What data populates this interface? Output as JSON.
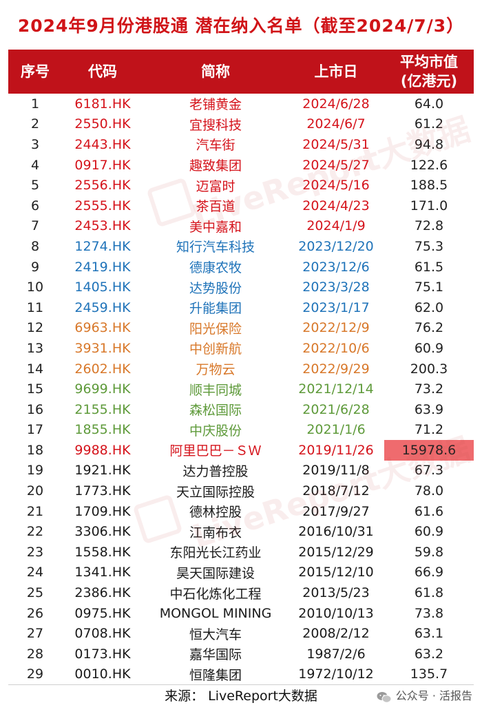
{
  "title": "2024年9月份港股通 潜在纳入名单（截至2024/7/3）",
  "header": {
    "col1": "序号",
    "col2": "代码",
    "col3": "简称",
    "col4": "上市日",
    "col5a": "平均市值",
    "col5b": "(亿港元)"
  },
  "rows": [
    {
      "no": "1",
      "code": "6181.HK",
      "name": "老铺黄金",
      "date": "2024/6/28",
      "cap": "64.0",
      "color": "red"
    },
    {
      "no": "2",
      "code": "2550.HK",
      "name": "宜搜科技",
      "date": "2024/6/7",
      "cap": "61.2",
      "color": "red"
    },
    {
      "no": "3",
      "code": "2443.HK",
      "name": "汽车街",
      "date": "2024/5/31",
      "cap": "94.8",
      "color": "red"
    },
    {
      "no": "4",
      "code": "0917.HK",
      "name": "趣致集团",
      "date": "2024/5/27",
      "cap": "122.6",
      "color": "red"
    },
    {
      "no": "5",
      "code": "2556.HK",
      "name": "迈富时",
      "date": "2024/5/16",
      "cap": "188.5",
      "color": "red"
    },
    {
      "no": "6",
      "code": "2555.HK",
      "name": "茶百道",
      "date": "2024/4/23",
      "cap": "171.0",
      "color": "red"
    },
    {
      "no": "7",
      "code": "2453.HK",
      "name": "美中嘉和",
      "date": "2024/1/9",
      "cap": "72.8",
      "color": "red"
    },
    {
      "no": "8",
      "code": "1274.HK",
      "name": "知行汽车科技",
      "date": "2023/12/20",
      "cap": "75.3",
      "color": "blue"
    },
    {
      "no": "9",
      "code": "2419.HK",
      "name": "德康农牧",
      "date": "2023/12/6",
      "cap": "61.5",
      "color": "blue"
    },
    {
      "no": "10",
      "code": "1405.HK",
      "name": "达势股份",
      "date": "2023/3/28",
      "cap": "75.1",
      "color": "blue"
    },
    {
      "no": "11",
      "code": "2459.HK",
      "name": "升能集团",
      "date": "2023/1/17",
      "cap": "62.0",
      "color": "blue"
    },
    {
      "no": "12",
      "code": "6963.HK",
      "name": "阳光保险",
      "date": "2022/12/9",
      "cap": "76.2",
      "color": "orange"
    },
    {
      "no": "13",
      "code": "3931.HK",
      "name": "中创新航",
      "date": "2022/10/6",
      "cap": "60.9",
      "color": "orange"
    },
    {
      "no": "14",
      "code": "2602.HK",
      "name": "万物云",
      "date": "2022/9/29",
      "cap": "200.3",
      "color": "orange"
    },
    {
      "no": "15",
      "code": "9699.HK",
      "name": "顺丰同城",
      "date": "2021/12/14",
      "cap": "73.2",
      "color": "green"
    },
    {
      "no": "16",
      "code": "2155.HK",
      "name": "森松国际",
      "date": "2021/6/28",
      "cap": "63.9",
      "color": "green"
    },
    {
      "no": "17",
      "code": "1855.HK",
      "name": "中庆股份",
      "date": "2021/1/6",
      "cap": "71.2",
      "color": "green"
    },
    {
      "no": "18",
      "code": "9988.HK",
      "name": "阿里巴巴－ＳＷ",
      "date": "2019/11/26",
      "cap": "15978.6",
      "color": "red",
      "highlight": true
    },
    {
      "no": "19",
      "code": "1921.HK",
      "name": "达力普控股",
      "date": "2019/11/8",
      "cap": "67.3",
      "color": "black"
    },
    {
      "no": "20",
      "code": "1773.HK",
      "name": "天立国际控股",
      "date": "2018/7/12",
      "cap": "78.0",
      "color": "black"
    },
    {
      "no": "21",
      "code": "1709.HK",
      "name": "德林控股",
      "date": "2017/9/27",
      "cap": "61.6",
      "color": "black"
    },
    {
      "no": "22",
      "code": "3306.HK",
      "name": "江南布衣",
      "date": "2016/10/31",
      "cap": "60.9",
      "color": "black"
    },
    {
      "no": "23",
      "code": "1558.HK",
      "name": "东阳光长江药业",
      "date": "2015/12/29",
      "cap": "59.8",
      "color": "black"
    },
    {
      "no": "24",
      "code": "1341.HK",
      "name": "昊天国际建设",
      "date": "2015/12/10",
      "cap": "66.9",
      "color": "black"
    },
    {
      "no": "25",
      "code": "2386.HK",
      "name": "中石化炼化工程",
      "date": "2013/5/23",
      "cap": "61.8",
      "color": "black"
    },
    {
      "no": "26",
      "code": "0975.HK",
      "name": "MONGOL MINING",
      "date": "2010/10/13",
      "cap": "73.8",
      "color": "black"
    },
    {
      "no": "27",
      "code": "0708.HK",
      "name": "恒大汽车",
      "date": "2008/2/12",
      "cap": "63.1",
      "color": "black"
    },
    {
      "no": "28",
      "code": "0173.HK",
      "name": "嘉华国际",
      "date": "1987/2/6",
      "cap": "63.2",
      "color": "black"
    },
    {
      "no": "29",
      "code": "0010.HK",
      "name": "恒隆集团",
      "date": "1972/10/12",
      "cap": "135.7",
      "color": "black"
    }
  ],
  "source": "来源：  LiveReport大数据",
  "wechat": "公众号 · 活报告",
  "watermark": "LiveReport大数据",
  "colors": {
    "header_bg": "#c0121a",
    "title": "#d01418",
    "red": "#d5131b",
    "blue": "#1f73b9",
    "orange": "#d8782a",
    "green": "#5e9a3a",
    "highlight": "#ef6b6e"
  }
}
